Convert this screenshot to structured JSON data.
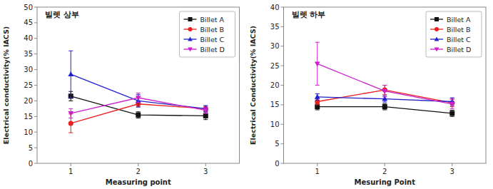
{
  "chart_data": [
    {
      "type": "line",
      "xlabel": "Measuring point",
      "ylabel": "Electrical conductivity(% IACS)",
      "annotations": [
        "빌렛 상부"
      ],
      "x": [
        1,
        2,
        3
      ],
      "xlim": [
        0.5,
        3.5
      ],
      "xticks": [
        1,
        2,
        3
      ],
      "ylim": [
        0,
        50
      ],
      "yticks": [
        0,
        5,
        10,
        15,
        20,
        25,
        30,
        35,
        40,
        45,
        50
      ],
      "grid": false,
      "legend": "upper right",
      "series": [
        {
          "name": "Billet A",
          "color": "#111111",
          "marker": "square",
          "values": [
            21.5,
            15.5,
            15.2
          ],
          "yerr": [
            1.5,
            1.0,
            1.2
          ]
        },
        {
          "name": "Billet B",
          "color": "#e82020",
          "marker": "circle",
          "values": [
            12.8,
            19.0,
            17.5
          ],
          "yerr": [
            3.0,
            0.8,
            0.8
          ]
        },
        {
          "name": "Billet C",
          "color": "#2020cc",
          "marker": "triangle-up",
          "values": [
            28.5,
            20.0,
            17.5
          ],
          "yerr": [
            7.5,
            2.0,
            1.0
          ]
        },
        {
          "name": "Billet D",
          "color": "#cc20cc",
          "marker": "triangle-down",
          "values": [
            16.0,
            21.0,
            17.0
          ],
          "yerr": [
            1.5,
            1.5,
            1.0
          ]
        }
      ]
    },
    {
      "type": "line",
      "xlabel": "Mesuring Point",
      "ylabel": "Electrical Conductivity(% IACS)",
      "annotations": [
        "빌렛 하부"
      ],
      "x": [
        1,
        2,
        3
      ],
      "xlim": [
        0.5,
        3.5
      ],
      "xticks": [
        1,
        2,
        3
      ],
      "ylim": [
        0,
        40
      ],
      "yticks": [
        0,
        5,
        10,
        15,
        20,
        25,
        30,
        35,
        40
      ],
      "grid": false,
      "legend": "upper right",
      "series": [
        {
          "name": "Billet A",
          "color": "#111111",
          "marker": "square",
          "values": [
            14.5,
            14.5,
            12.8
          ],
          "yerr": [
            0.8,
            0.8,
            0.8
          ]
        },
        {
          "name": "Billet B",
          "color": "#e82020",
          "marker": "circle",
          "values": [
            15.8,
            18.8,
            15.5
          ],
          "yerr": [
            0.8,
            1.2,
            1.0
          ]
        },
        {
          "name": "Billet C",
          "color": "#2020cc",
          "marker": "triangle-up",
          "values": [
            17.0,
            16.5,
            15.8
          ],
          "yerr": [
            0.8,
            0.8,
            1.0
          ]
        },
        {
          "name": "Billet D",
          "color": "#cc20cc",
          "marker": "triangle-down",
          "values": [
            25.5,
            18.5,
            15.2
          ],
          "yerr": [
            5.5,
            1.5,
            1.2
          ]
        }
      ]
    }
  ]
}
